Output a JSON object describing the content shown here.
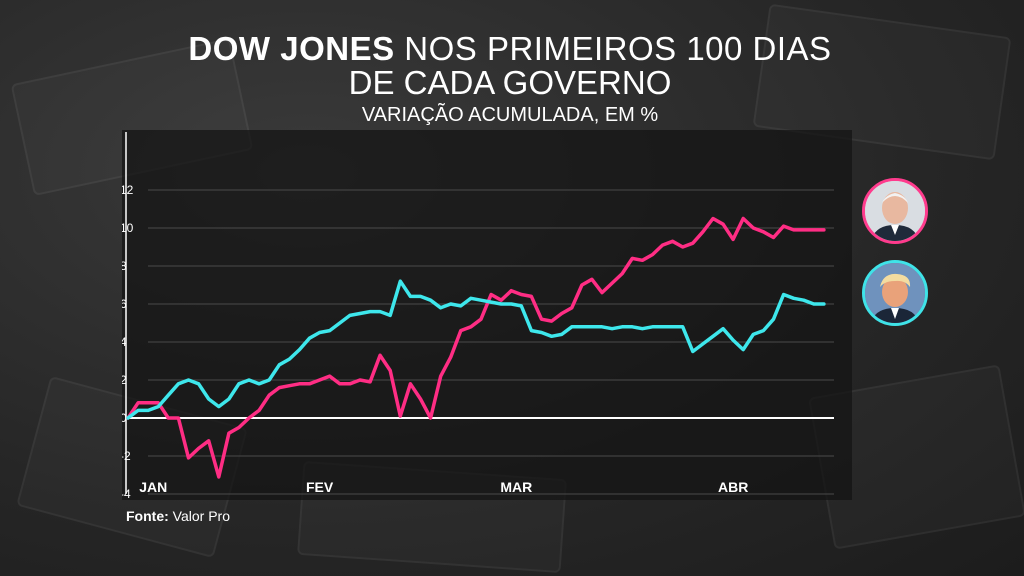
{
  "title": {
    "bold": "DOW JONES",
    "rest": "NOS PRIMEIROS 100 DIAS",
    "line2": "DE CADA GOVERNO"
  },
  "subtitle": "VARIAÇÃO ACUMULADA, EM %",
  "source": {
    "label": "Fonte:",
    "value": "Valor Pro"
  },
  "colors": {
    "biden": "#ff2d84",
    "trump": "#3ee7ec",
    "axis": "#ffffff",
    "grid": "#4a4a4a"
  },
  "avatars": [
    {
      "name": "biden-avatar",
      "icon": "biden-portrait-icon"
    },
    {
      "name": "trump-avatar",
      "icon": "trump-portrait-icon"
    }
  ],
  "chart_data": {
    "type": "line",
    "title": "DOW JONES NOS PRIMEIROS 100 DIAS DE CADA GOVERNO",
    "subtitle": "VARIAÇÃO ACUMULADA, EM %",
    "ylim": [
      -4,
      14
    ],
    "yticks": [
      -4,
      -2,
      0,
      2,
      4,
      6,
      8,
      10,
      12
    ],
    "xlim": [
      0,
      70
    ],
    "month_labels": [
      {
        "label": "JAN",
        "x": 2.5
      },
      {
        "label": "FEV",
        "x": 19
      },
      {
        "label": "MAR",
        "x": 38.5
      },
      {
        "label": "ABR",
        "x": 60
      }
    ],
    "grid": true,
    "series": [
      {
        "key": "biden",
        "x": [
          0,
          1,
          2,
          3,
          4,
          5,
          6,
          7,
          8,
          9,
          10,
          11,
          12,
          13,
          14,
          15,
          16,
          17,
          18,
          19,
          20,
          21,
          22,
          23,
          24,
          25,
          26,
          27,
          28,
          29,
          30,
          31,
          32,
          33,
          34,
          35,
          36,
          37,
          38,
          39,
          40,
          41,
          42,
          43,
          44,
          45,
          46,
          47,
          48,
          49,
          50,
          51,
          52,
          53,
          54,
          55,
          56,
          57,
          58,
          59,
          60,
          61,
          62,
          63,
          64,
          65,
          66,
          67,
          68,
          69
        ],
        "values": [
          0,
          0.8,
          0.8,
          0.8,
          0,
          0,
          -2.1,
          -1.6,
          -1.2,
          -3.1,
          -0.8,
          -0.5,
          0,
          0.4,
          1.2,
          1.6,
          1.7,
          1.8,
          1.8,
          2.0,
          2.2,
          1.8,
          1.8,
          2.0,
          1.9,
          3.3,
          2.5,
          0.1,
          1.8,
          1.0,
          0,
          2.2,
          3.2,
          4.6,
          4.8,
          5.2,
          6.5,
          6.2,
          6.7,
          6.5,
          6.4,
          5.2,
          5.1,
          5.5,
          5.8,
          7.0,
          7.3,
          6.6,
          7.1,
          7.6,
          8.4,
          8.3,
          8.6,
          9.1,
          9.3,
          9.0,
          9.2,
          9.8,
          10.5,
          10.2,
          9.4,
          10.5,
          10.0,
          9.8,
          9.5,
          10.1,
          9.9,
          9.9,
          9.9,
          9.9
        ]
      },
      {
        "key": "trump",
        "x": [
          0,
          1,
          2,
          3,
          4,
          5,
          6,
          7,
          8,
          9,
          10,
          11,
          12,
          13,
          14,
          15,
          16,
          17,
          18,
          19,
          20,
          21,
          22,
          23,
          24,
          25,
          26,
          27,
          28,
          29,
          30,
          31,
          32,
          33,
          34,
          35,
          36,
          37,
          38,
          39,
          40,
          41,
          42,
          43,
          44,
          45,
          46,
          47,
          48,
          49,
          50,
          51,
          52,
          53,
          54,
          55,
          56,
          57,
          58,
          59,
          60,
          61,
          62,
          63,
          64,
          65,
          66,
          67,
          68,
          69
        ],
        "values": [
          0,
          0.4,
          0.4,
          0.6,
          1.2,
          1.8,
          2.0,
          1.8,
          1.0,
          0.6,
          1.0,
          1.8,
          2.0,
          1.8,
          2.0,
          2.8,
          3.1,
          3.6,
          4.2,
          4.5,
          4.6,
          5.0,
          5.4,
          5.5,
          5.6,
          5.6,
          5.4,
          7.2,
          6.4,
          6.4,
          6.2,
          5.8,
          6.0,
          5.9,
          6.3,
          6.2,
          6.1,
          6.0,
          6.0,
          5.9,
          4.6,
          4.5,
          4.3,
          4.4,
          4.8,
          4.8,
          4.8,
          4.8,
          4.7,
          4.8,
          4.8,
          4.7,
          4.8,
          4.8,
          4.8,
          4.8,
          3.5,
          3.9,
          4.3,
          4.7,
          4.1,
          3.6,
          4.4,
          4.6,
          5.2,
          6.5,
          6.3,
          6.2,
          6.0,
          6.0
        ]
      }
    ]
  }
}
